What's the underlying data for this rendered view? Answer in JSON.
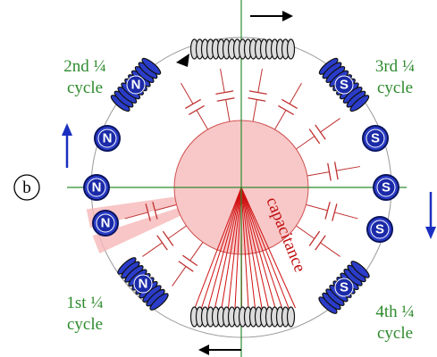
{
  "panel_label": "b",
  "quarters": [
    {
      "title": "2nd ¼",
      "sub": "cycle"
    },
    {
      "title": "3rd ¼",
      "sub": "cycle"
    },
    {
      "title": "1st ¼",
      "sub": "cycle"
    },
    {
      "title": "4th ¼",
      "sub": "cycle"
    }
  ],
  "capacitance_label": "capacitance",
  "magnets": [
    {
      "label": "N"
    },
    {
      "label": "N"
    },
    {
      "label": "N"
    },
    {
      "label": "N"
    },
    {
      "label": "N"
    },
    {
      "label": "S"
    },
    {
      "label": "S"
    },
    {
      "label": "S"
    },
    {
      "label": "S"
    },
    {
      "label": "S"
    }
  ]
}
